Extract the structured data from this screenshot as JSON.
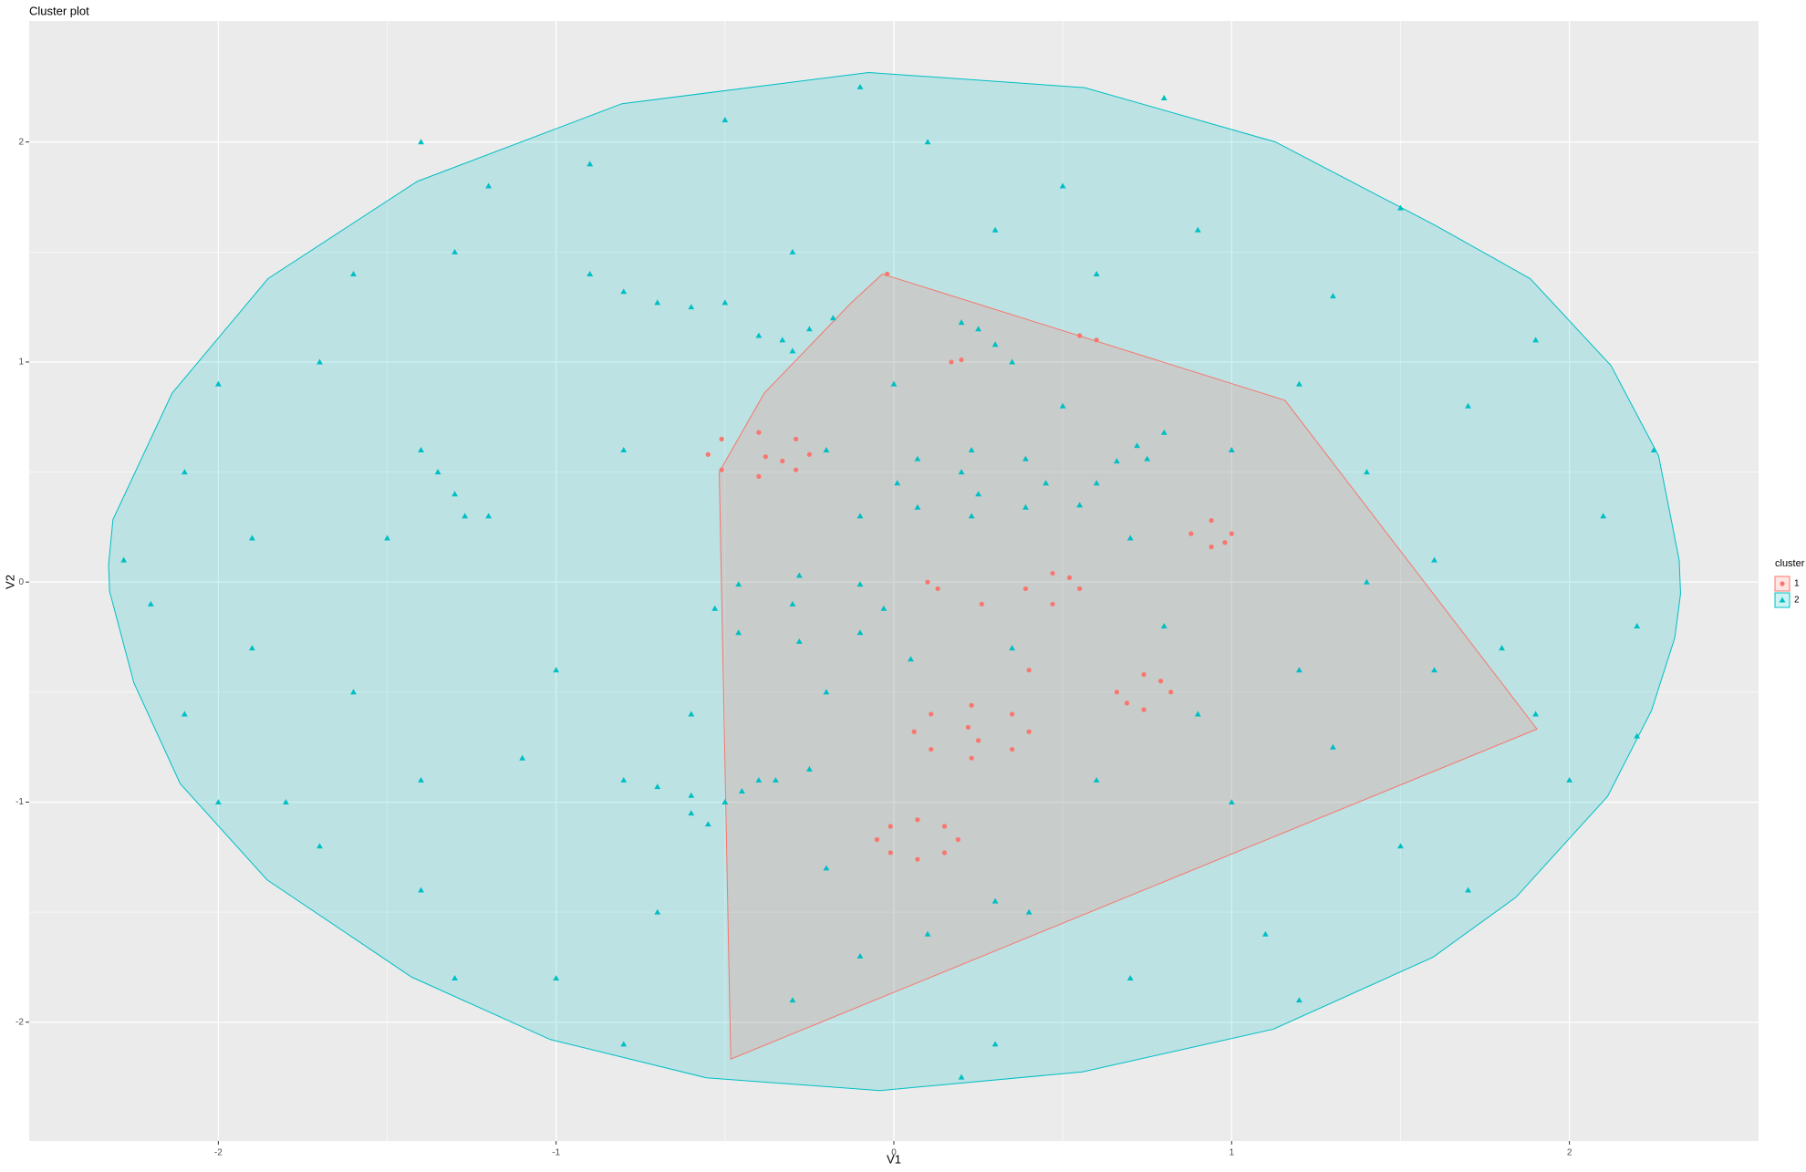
{
  "chart_data": {
    "type": "scatter",
    "title": "Cluster plot",
    "x_label": "V1",
    "y_label": "V2",
    "xlim": [
      -2.56,
      2.56
    ],
    "ylim": [
      -2.54,
      2.55
    ],
    "xticks": [
      -2,
      -1,
      0,
      1,
      2
    ],
    "yticks": [
      -2,
      -1,
      0,
      1,
      2
    ],
    "grid": true,
    "minor_grid": true,
    "legend_title": "cluster",
    "legend_position": "right",
    "series": [
      {
        "name": "1",
        "color": "#F8766D",
        "shape": "circle",
        "hull": [
          [
            -0.034,
            1.4
          ],
          [
            1.158,
            0.826
          ],
          [
            1.904,
            -0.668
          ],
          [
            -0.483,
            -2.168
          ],
          [
            -0.517,
            0.5
          ],
          [
            -0.384,
            0.858
          ],
          [
            -0.127,
            1.268
          ]
        ],
        "points": [
          [
            -0.25,
            0.58
          ],
          [
            -0.29,
            0.65
          ],
          [
            -0.4,
            0.68
          ],
          [
            -0.51,
            0.65
          ],
          [
            -0.55,
            0.58
          ],
          [
            -0.51,
            0.51
          ],
          [
            -0.4,
            0.48
          ],
          [
            -0.29,
            0.51
          ],
          [
            -0.38,
            0.57
          ],
          [
            -0.33,
            0.55
          ],
          [
            0.4,
            -0.68
          ],
          [
            0.35,
            -0.6
          ],
          [
            0.23,
            -0.56
          ],
          [
            0.11,
            -0.6
          ],
          [
            0.06,
            -0.68
          ],
          [
            0.11,
            -0.76
          ],
          [
            0.23,
            -0.8
          ],
          [
            0.35,
            -0.76
          ],
          [
            0.22,
            -0.66
          ],
          [
            0.25,
            -0.72
          ],
          [
            0.19,
            -1.17
          ],
          [
            0.15,
            -1.11
          ],
          [
            0.07,
            -1.08
          ],
          [
            -0.01,
            -1.11
          ],
          [
            -0.05,
            -1.17
          ],
          [
            -0.01,
            -1.23
          ],
          [
            0.07,
            -1.26
          ],
          [
            0.15,
            -1.23
          ],
          [
            0.82,
            -0.5
          ],
          [
            0.74,
            -0.42
          ],
          [
            0.66,
            -0.5
          ],
          [
            0.74,
            -0.58
          ],
          [
            0.79,
            -0.45
          ],
          [
            0.69,
            -0.55
          ],
          [
            1.0,
            0.22
          ],
          [
            0.94,
            0.28
          ],
          [
            0.88,
            0.22
          ],
          [
            0.94,
            0.16
          ],
          [
            0.98,
            0.18
          ],
          [
            0.55,
            -0.03
          ],
          [
            0.47,
            0.04
          ],
          [
            0.39,
            -0.03
          ],
          [
            0.47,
            -0.1
          ],
          [
            0.52,
            0.02
          ],
          [
            0.26,
            -0.1
          ],
          [
            0.55,
            1.12
          ],
          [
            0.6,
            1.1
          ],
          [
            0.17,
            1.0
          ],
          [
            0.2,
            1.01
          ],
          [
            -0.02,
            1.4
          ],
          [
            0.1,
            0.0
          ],
          [
            0.13,
            -0.03
          ],
          [
            0.4,
            -0.4
          ]
        ]
      },
      {
        "name": "2",
        "color": "#00BFC4",
        "shape": "triangle",
        "hull": [
          [
            -2.325,
            0.079
          ],
          [
            -2.312,
            0.284
          ],
          [
            -2.137,
            0.858
          ],
          [
            -1.853,
            1.379
          ],
          [
            -1.411,
            1.821
          ],
          [
            -0.805,
            2.174
          ],
          [
            -0.075,
            2.316
          ],
          [
            0.565,
            2.247
          ],
          [
            1.13,
            2.0
          ],
          [
            1.603,
            1.621
          ],
          [
            1.884,
            1.379
          ],
          [
            2.123,
            0.984
          ],
          [
            2.264,
            0.574
          ],
          [
            2.325,
            0.1
          ],
          [
            2.329,
            -0.053
          ],
          [
            2.312,
            -0.253
          ],
          [
            2.243,
            -0.584
          ],
          [
            2.113,
            -0.974
          ],
          [
            1.842,
            -1.432
          ],
          [
            1.596,
            -1.705
          ],
          [
            1.123,
            -2.032
          ],
          [
            0.558,
            -2.226
          ],
          [
            -0.041,
            -2.311
          ],
          [
            -0.555,
            -2.253
          ],
          [
            -1.017,
            -2.079
          ],
          [
            -1.428,
            -1.795
          ],
          [
            -1.856,
            -1.353
          ],
          [
            -2.113,
            -0.916
          ],
          [
            -2.25,
            -0.458
          ],
          [
            -2.322,
            -0.042
          ]
        ],
        "points": [
          [
            -2.1,
            0.5
          ],
          [
            -1.9,
            -0.3
          ],
          [
            -1.7,
            1.0
          ],
          [
            -1.5,
            0.2
          ],
          [
            -1.3,
            1.5
          ],
          [
            -1.1,
            -0.8
          ],
          [
            -0.9,
            1.9
          ],
          [
            -0.7,
            -1.5
          ],
          [
            -0.5,
            2.1
          ],
          [
            -0.3,
            -1.9
          ],
          [
            0.1,
            2.0
          ],
          [
            0.3,
            -2.1
          ],
          [
            0.5,
            1.8
          ],
          [
            0.7,
            -1.8
          ],
          [
            0.9,
            1.6
          ],
          [
            1.1,
            -1.6
          ],
          [
            1.3,
            1.3
          ],
          [
            1.5,
            -1.2
          ],
          [
            1.7,
            0.8
          ],
          [
            1.9,
            -0.6
          ],
          [
            2.1,
            0.3
          ],
          [
            2.2,
            -0.2
          ],
          [
            -2.2,
            -0.1
          ],
          [
            -2.0,
            0.9
          ],
          [
            -1.8,
            -1.0
          ],
          [
            -1.6,
            1.4
          ],
          [
            -1.4,
            -1.4
          ],
          [
            -1.2,
            1.8
          ],
          [
            -1.0,
            -1.8
          ],
          [
            -0.8,
            0.6
          ],
          [
            -0.6,
            -0.6
          ],
          [
            -1.2,
            0.3
          ],
          [
            -1.6,
            -0.5
          ],
          [
            -1.9,
            0.2
          ],
          [
            0.6,
            1.4
          ],
          [
            1.2,
            0.9
          ],
          [
            1.4,
            0.5
          ],
          [
            1.6,
            0.1
          ],
          [
            1.8,
            -0.3
          ],
          [
            2.0,
            -0.9
          ],
          [
            1.0,
            -1.0
          ],
          [
            0.4,
            -1.5
          ],
          [
            -0.2,
            -1.3
          ],
          [
            -0.4,
            -0.9
          ],
          [
            -1.0,
            -0.4
          ],
          [
            -1.4,
            -0.9
          ],
          [
            -1.7,
            -1.2
          ],
          [
            -0.3,
            1.5
          ],
          [
            0.3,
            1.6
          ],
          [
            0.8,
            2.2
          ],
          [
            -0.1,
            2.25
          ],
          [
            -1.4,
            2.0
          ],
          [
            1.5,
            1.7
          ],
          [
            1.9,
            1.1
          ],
          [
            2.25,
            0.6
          ],
          [
            2.2,
            -0.7
          ],
          [
            1.7,
            -1.4
          ],
          [
            1.2,
            -1.9
          ],
          [
            0.2,
            -2.25
          ],
          [
            -0.8,
            -2.1
          ],
          [
            -1.3,
            -1.8
          ],
          [
            -2.0,
            -1.0
          ],
          [
            -2.28,
            0.1
          ],
          [
            -2.1,
            -0.6
          ],
          [
            -0.9,
            1.4
          ],
          [
            -0.8,
            1.32
          ],
          [
            -0.7,
            1.27
          ],
          [
            -0.6,
            1.25
          ],
          [
            -0.5,
            1.27
          ],
          [
            -1.4,
            0.6
          ],
          [
            -1.35,
            0.5
          ],
          [
            -1.3,
            0.4
          ],
          [
            -1.27,
            0.3
          ],
          [
            -0.8,
            -0.9
          ],
          [
            -0.7,
            -0.93
          ],
          [
            -0.6,
            -0.97
          ],
          [
            -0.5,
            -1.0
          ],
          [
            0.55,
            0.35
          ],
          [
            0.6,
            0.45
          ],
          [
            0.66,
            0.55
          ],
          [
            0.72,
            0.62
          ],
          [
            0.8,
            0.68
          ],
          [
            0.75,
            0.56
          ],
          [
            -0.4,
            1.12
          ],
          [
            -0.33,
            1.1
          ],
          [
            -0.25,
            1.15
          ],
          [
            -0.18,
            1.2
          ],
          [
            -0.3,
            1.05
          ],
          [
            0.2,
            1.18
          ],
          [
            0.25,
            1.15
          ],
          [
            0.3,
            1.08
          ],
          [
            0.35,
            1.0
          ],
          [
            0.45,
            0.45
          ],
          [
            0.39,
            0.56
          ],
          [
            0.23,
            0.6
          ],
          [
            0.07,
            0.56
          ],
          [
            0.01,
            0.45
          ],
          [
            0.07,
            0.34
          ],
          [
            0.23,
            0.3
          ],
          [
            0.39,
            0.34
          ],
          [
            0.2,
            0.5
          ],
          [
            0.25,
            0.4
          ],
          [
            -0.03,
            -0.12
          ],
          [
            -0.1,
            -0.01
          ],
          [
            -0.28,
            0.03
          ],
          [
            -0.46,
            -0.01
          ],
          [
            -0.53,
            -0.12
          ],
          [
            -0.46,
            -0.23
          ],
          [
            -0.28,
            -0.27
          ],
          [
            -0.1,
            -0.23
          ],
          [
            -0.3,
            -0.1
          ],
          [
            -0.6,
            -1.05
          ],
          [
            -0.55,
            -1.1
          ],
          [
            -0.5,
            -1.0
          ],
          [
            -0.45,
            -0.95
          ],
          [
            -0.35,
            -0.9
          ],
          [
            -0.25,
            -0.85
          ],
          [
            0.1,
            -1.6
          ],
          [
            0.3,
            -1.45
          ],
          [
            -0.1,
            -1.7
          ],
          [
            0.6,
            -0.9
          ],
          [
            0.9,
            -0.6
          ],
          [
            1.2,
            -0.4
          ],
          [
            1.3,
            -0.75
          ],
          [
            0.8,
            -0.2
          ],
          [
            0.35,
            -0.3
          ],
          [
            0.05,
            -0.35
          ],
          [
            -0.2,
            -0.5
          ],
          [
            0.0,
            0.9
          ],
          [
            0.5,
            0.8
          ],
          [
            1.0,
            0.6
          ],
          [
            -0.2,
            0.6
          ],
          [
            -0.1,
            0.3
          ],
          [
            0.7,
            0.2
          ],
          [
            1.4,
            0.0
          ],
          [
            1.6,
            -0.4
          ]
        ]
      }
    ]
  }
}
